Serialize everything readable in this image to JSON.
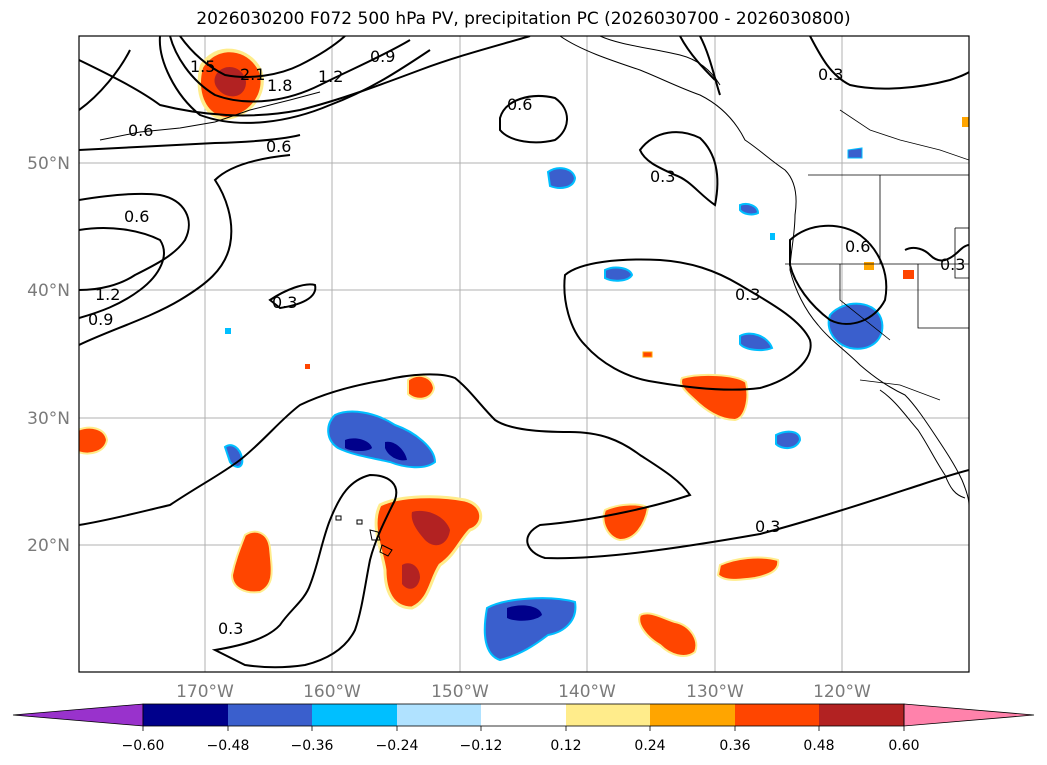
{
  "title": "2026030200 F072 500 hPa PV, precipitation PC (2026030700 - 2026030800)",
  "map": {
    "lat_labels": [
      "50°N",
      "40°N",
      "30°N",
      "20°N"
    ],
    "lon_labels": [
      "170°W",
      "160°W",
      "150°W",
      "140°W",
      "130°W",
      "120°W"
    ],
    "gridlines": true
  },
  "colors": {
    "contour": "#000000",
    "grid": "#b0b0b0",
    "coast": "#000000"
  },
  "contour_labels": [
    "0.6",
    "2.1",
    "1.8",
    "1.2",
    "0.9",
    "0.6",
    "0.6",
    "0.6",
    "1.2",
    "0.9",
    "0.3",
    "0.3",
    "0.3",
    "0.6",
    "0.3",
    "0.3",
    "0.3",
    "0.3",
    "1.5"
  ],
  "colorbar": {
    "ticks": [
      "−0.60",
      "−0.48",
      "−0.36",
      "−0.24",
      "−0.12",
      "0.12",
      "0.24",
      "0.36",
      "0.48",
      "0.60"
    ],
    "colors": [
      "#9932cc",
      "#00008b",
      "#3a5fcd",
      "#00bfff",
      "#b0e2ff",
      "#ffffff",
      "#ffec8b",
      "#ffa500",
      "#ff4500",
      "#b22222",
      "#ff82ab"
    ]
  }
}
